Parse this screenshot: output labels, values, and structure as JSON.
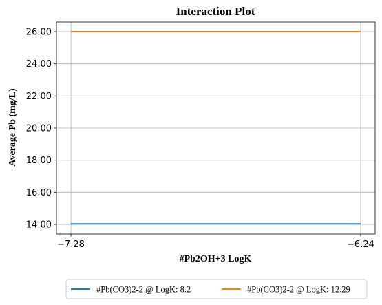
{
  "chart_data": {
    "type": "line",
    "title": "Interaction Plot",
    "xlabel": "#Pb2OH+3 LogK",
    "ylabel": "Average Pb (mg/L)",
    "x": [
      -7.28,
      -6.24
    ],
    "x_tick_labels": [
      "−7.28",
      "−6.24"
    ],
    "xlim": [
      -7.332,
      -6.188
    ],
    "ylim": [
      13.4,
      26.6
    ],
    "y_ticks": [
      14,
      16,
      18,
      20,
      22,
      24,
      26
    ],
    "y_tick_labels": [
      "14.00",
      "16.00",
      "18.00",
      "20.00",
      "22.00",
      "24.00",
      "26.00"
    ],
    "grid": true,
    "legend_position": "bottom-center",
    "series": [
      {
        "name": "#Pb(CO3)2-2 @ LogK: 8.2",
        "values": [
          14.03,
          14.03
        ],
        "color": "#1f77b4"
      },
      {
        "name": "#Pb(CO3)2-2 @ LogK: 12.29",
        "values": [
          26.0,
          26.0
        ],
        "color": "#ff7f0e"
      }
    ]
  }
}
